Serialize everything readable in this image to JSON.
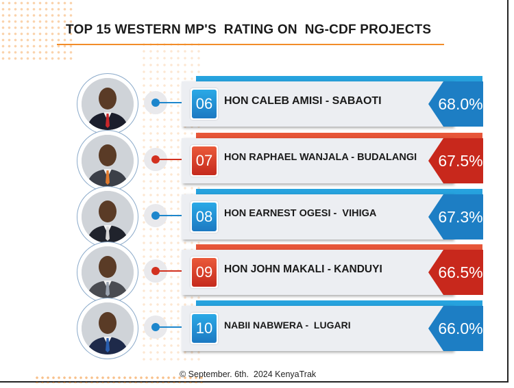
{
  "title": "TOP 15 WESTERN MP'S  RATING ON  NG-CDF PROJECTS",
  "footer": "© September. 6th.  2024 KenyaTrak",
  "colors": {
    "blue": "#1d7ec4",
    "red": "#c8281c",
    "accent_orange": "#f28c28"
  },
  "rows": [
    {
      "rank": "06",
      "name": "HON CALEB AMISI - SABAOTI",
      "rating": "68.0%",
      "color": "blue"
    },
    {
      "rank": "07",
      "name": "HON RAPHAEL WANJALA - BUDALANGI",
      "rating": "67.5%",
      "color": "red"
    },
    {
      "rank": "08",
      "name": "HON EARNEST OGESI -  VIHIGA",
      "rating": "67.3%",
      "color": "blue"
    },
    {
      "rank": "09",
      "name": "HON JOHN MAKALI - KANDUYI",
      "rating": "66.5%",
      "color": "red"
    },
    {
      "rank": "10",
      "name": "NABII NABWERA -  LUGARI",
      "rating": "66.0%",
      "color": "blue"
    }
  ],
  "chart_data": {
    "type": "bar",
    "title": "TOP 15 WESTERN MP'S  RATING ON  NG-CDF PROJECTS",
    "categories": [
      "HON CALEB AMISI - SABAOTI",
      "HON RAPHAEL WANJALA - BUDALANGI",
      "HON EARNEST OGESI -  VIHIGA",
      "HON JOHN MAKALI - KANDUYI",
      "NABII NABWERA -  LUGARI"
    ],
    "ranks": [
      "06",
      "07",
      "08",
      "09",
      "10"
    ],
    "values": [
      68.0,
      67.5,
      67.3,
      66.5,
      66.0
    ],
    "unit": "%"
  }
}
